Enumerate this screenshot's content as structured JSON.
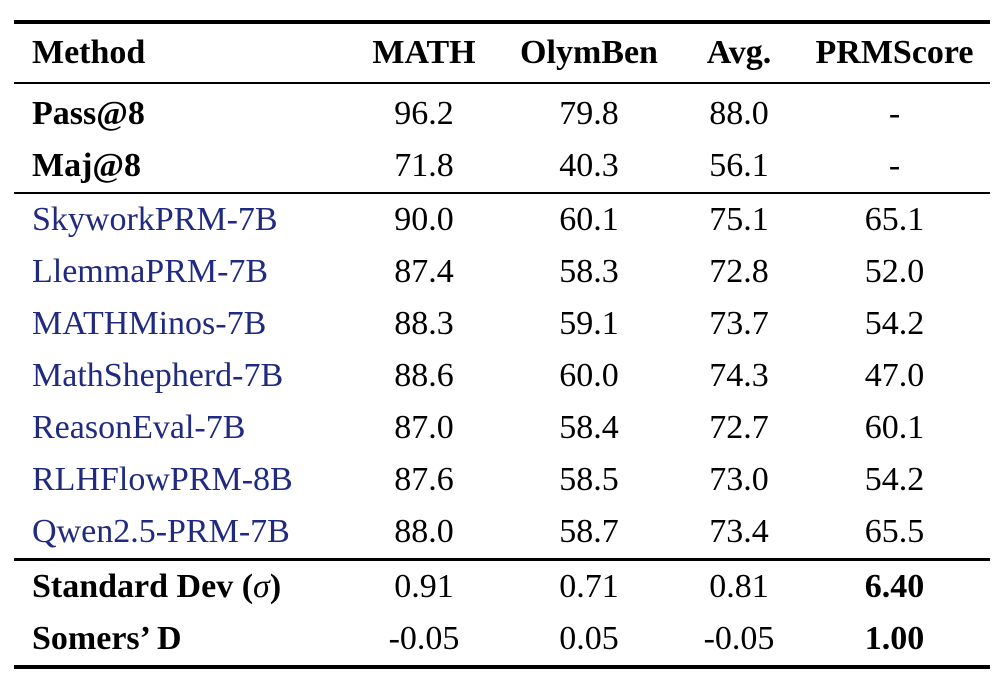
{
  "table": {
    "headers": [
      "Method",
      "MATH",
      "OlymBen",
      "Avg.",
      "PRMScore"
    ],
    "baselines": [
      {
        "method": "Pass@8",
        "math": "96.2",
        "olymben": "79.8",
        "avg": "88.0",
        "prmscore": "-"
      },
      {
        "method": "Maj@8",
        "math": "71.8",
        "olymben": "40.3",
        "avg": "56.1",
        "prmscore": "-"
      }
    ],
    "models": [
      {
        "method": "SkyworkPRM-7B",
        "math": "90.0",
        "olymben": "60.1",
        "avg": "75.1",
        "prmscore": "65.1"
      },
      {
        "method": "LlemmaPRM-7B",
        "math": "87.4",
        "olymben": "58.3",
        "avg": "72.8",
        "prmscore": "52.0"
      },
      {
        "method": "MATHMinos-7B",
        "math": "88.3",
        "olymben": "59.1",
        "avg": "73.7",
        "prmscore": "54.2"
      },
      {
        "method": "MathShepherd-7B",
        "math": "88.6",
        "olymben": "60.0",
        "avg": "74.3",
        "prmscore": "47.0"
      },
      {
        "method": "ReasonEval-7B",
        "math": "87.0",
        "olymben": "58.4",
        "avg": "72.7",
        "prmscore": "60.1"
      },
      {
        "method": "RLHFlowPRM-8B",
        "math": "87.6",
        "olymben": "58.5",
        "avg": "73.0",
        "prmscore": "54.2"
      },
      {
        "method": "Qwen2.5-PRM-7B",
        "math": "88.0",
        "olymben": "58.7",
        "avg": "73.4",
        "prmscore": "65.5"
      }
    ],
    "stats": [
      {
        "method": "Standard Dev",
        "method_symbol": "σ",
        "math": "0.91",
        "olymben": "0.71",
        "avg": "0.81",
        "prmscore": "6.40"
      },
      {
        "method": "Somers’ D",
        "math": "-0.05",
        "olymben": "0.05",
        "avg": "-0.05",
        "prmscore": "1.00"
      }
    ]
  }
}
